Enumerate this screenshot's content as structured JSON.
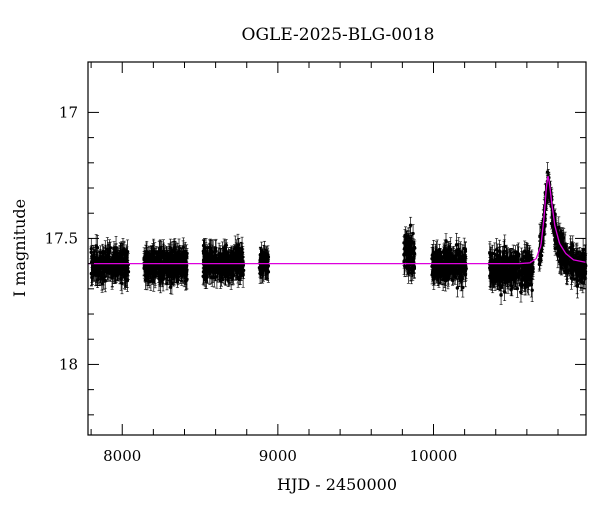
{
  "chart_data": {
    "type": "scatter",
    "title": "OGLE-2025-BLG-0018",
    "xlabel": "HJD - 2450000",
    "ylabel": "I magnitude",
    "xlim": [
      7780,
      10980
    ],
    "ylim": [
      18.28,
      16.8
    ],
    "y_inverted": true,
    "x_ticks": [
      8000,
      9000,
      10000
    ],
    "y_ticks": [
      17,
      17.5,
      18
    ],
    "y_tick_labels": [
      "17",
      "17.5",
      "18"
    ],
    "grid": false,
    "legend": "none",
    "colors": {
      "points": "#000000",
      "model": "#dd00dd"
    },
    "observing_seasons": [
      {
        "start": 7800,
        "end": 8040,
        "mean_mag": 17.605,
        "scatter": 0.03
      },
      {
        "start": 8140,
        "end": 8420,
        "mean_mag": 17.605,
        "scatter": 0.03
      },
      {
        "start": 8520,
        "end": 8780,
        "mean_mag": 17.6,
        "scatter": 0.03
      },
      {
        "start": 8880,
        "end": 8940,
        "mean_mag": 17.6,
        "scatter": 0.02
      },
      {
        "start": 9810,
        "end": 9880,
        "mean_mag": 17.57,
        "scatter": 0.04
      },
      {
        "start": 9990,
        "end": 10210,
        "mean_mag": 17.605,
        "scatter": 0.03
      },
      {
        "start": 10360,
        "end": 10640,
        "mean_mag": 17.625,
        "scatter": 0.035
      },
      {
        "start": 10680,
        "end": 10980,
        "mean_mag": 17.55,
        "scatter": 0.03
      }
    ],
    "event": {
      "t0": 10735,
      "peak_mag": 17.25,
      "baseline_mag": 17.6
    },
    "model_curve": [
      [
        7780,
        17.6
      ],
      [
        10550,
        17.6
      ],
      [
        10620,
        17.597
      ],
      [
        10660,
        17.58
      ],
      [
        10690,
        17.53
      ],
      [
        10710,
        17.42
      ],
      [
        10725,
        17.3
      ],
      [
        10735,
        17.25
      ],
      [
        10745,
        17.28
      ],
      [
        10760,
        17.36
      ],
      [
        10780,
        17.45
      ],
      [
        10810,
        17.52
      ],
      [
        10850,
        17.56
      ],
      [
        10900,
        17.585
      ],
      [
        10980,
        17.595
      ]
    ]
  }
}
